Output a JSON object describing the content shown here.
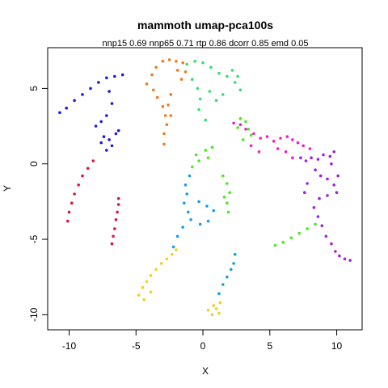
{
  "chart_data": {
    "type": "scatter",
    "title": "mammoth umap-pca100s",
    "subtitle": "nnp15 0.69 nnp65 0.71 rtp 0.86 dcorr 0.85 emd 0.05",
    "xlabel": "X",
    "ylabel": "Y",
    "xlim": [
      -11.6,
      11.9
    ],
    "ylim": [
      -11.0,
      7.7
    ],
    "xticks": [
      -10,
      -5,
      0,
      5,
      10
    ],
    "yticks": [
      -10,
      -5,
      0,
      5
    ],
    "grid": false,
    "legend": "none",
    "series": [
      {
        "color": "#1a1ae0",
        "points": [
          [
            -10.7,
            3.4
          ],
          [
            -10.2,
            3.7
          ],
          [
            -9.6,
            4.2
          ],
          [
            -9.0,
            4.6
          ],
          [
            -8.4,
            5.0
          ],
          [
            -7.8,
            5.4
          ],
          [
            -7.2,
            5.7
          ],
          [
            -6.6,
            5.8
          ],
          [
            -6.0,
            5.9
          ],
          [
            -7.0,
            4.8
          ],
          [
            -6.8,
            4.0
          ],
          [
            -7.2,
            3.2
          ],
          [
            -7.6,
            2.8
          ],
          [
            -8.0,
            2.5
          ],
          [
            -7.4,
            1.8
          ],
          [
            -7.0,
            1.6
          ],
          [
            -6.8,
            1.2
          ],
          [
            -7.2,
            0.9
          ],
          [
            -7.6,
            1.4
          ],
          [
            -6.5,
            2.0
          ],
          [
            -6.3,
            2.2
          ]
        ]
      },
      {
        "color": "#e0143c",
        "points": [
          [
            -10.1,
            -3.8
          ],
          [
            -10.0,
            -3.2
          ],
          [
            -9.8,
            -2.6
          ],
          [
            -9.6,
            -2.0
          ],
          [
            -9.3,
            -1.4
          ],
          [
            -9.0,
            -0.8
          ],
          [
            -8.6,
            -0.3
          ],
          [
            -8.2,
            0.2
          ],
          [
            -6.8,
            -5.3
          ],
          [
            -6.7,
            -4.8
          ],
          [
            -6.6,
            -4.3
          ],
          [
            -6.5,
            -3.7
          ],
          [
            -6.4,
            -3.2
          ],
          [
            -6.3,
            -2.7
          ],
          [
            -6.3,
            -2.3
          ]
        ]
      },
      {
        "color": "#f07a1e",
        "points": [
          [
            -4.2,
            5.3
          ],
          [
            -3.8,
            5.9
          ],
          [
            -3.5,
            6.4
          ],
          [
            -3.0,
            6.8
          ],
          [
            -2.5,
            6.9
          ],
          [
            -2.0,
            6.8
          ],
          [
            -1.5,
            6.7
          ],
          [
            -3.7,
            4.9
          ],
          [
            -3.4,
            4.4
          ],
          [
            -3.0,
            3.8
          ],
          [
            -2.8,
            3.2
          ],
          [
            -2.6,
            3.9
          ],
          [
            -2.4,
            4.6
          ],
          [
            -2.7,
            2.6
          ],
          [
            -2.9,
            2.0
          ],
          [
            -2.9,
            1.3
          ],
          [
            -2.4,
            3.2
          ],
          [
            -1.9,
            6.2
          ],
          [
            -1.6,
            5.6
          ],
          [
            -1.3,
            6.1
          ]
        ]
      },
      {
        "color": "#f0d21e",
        "points": [
          [
            -4.8,
            -8.7
          ],
          [
            -4.5,
            -8.2
          ],
          [
            -4.2,
            -7.8
          ],
          [
            -3.9,
            -7.4
          ],
          [
            -3.5,
            -7.0
          ],
          [
            -3.1,
            -6.6
          ],
          [
            -2.7,
            -6.3
          ],
          [
            -2.3,
            -6.0
          ],
          [
            -2.0,
            -5.7
          ],
          [
            -4.4,
            -9.0
          ],
          [
            -3.9,
            -8.5
          ],
          [
            0.4,
            -9.7
          ],
          [
            0.7,
            -10.0
          ],
          [
            1.0,
            -9.6
          ],
          [
            1.3,
            -9.2
          ],
          [
            0.8,
            -9.4
          ],
          [
            1.2,
            -9.9
          ]
        ]
      },
      {
        "color": "#33e06e",
        "points": [
          [
            -1.2,
            6.6
          ],
          [
            -0.6,
            6.8
          ],
          [
            0.0,
            6.7
          ],
          [
            0.6,
            6.4
          ],
          [
            1.2,
            6.0
          ],
          [
            1.8,
            5.8
          ],
          [
            2.4,
            5.4
          ],
          [
            2.8,
            4.9
          ],
          [
            -0.8,
            5.6
          ],
          [
            -0.4,
            5.0
          ],
          [
            -0.2,
            4.3
          ],
          [
            -0.3,
            3.6
          ],
          [
            0.2,
            2.9
          ],
          [
            0.5,
            4.8
          ],
          [
            1.0,
            4.2
          ],
          [
            1.5,
            4.6
          ],
          [
            2.2,
            6.2
          ],
          [
            2.6,
            5.8
          ]
        ]
      },
      {
        "color": "#4ee81e",
        "points": [
          [
            -0.5,
            0.6
          ],
          [
            -0.3,
            0.2
          ],
          [
            0.2,
            0.9
          ],
          [
            0.7,
            1.1
          ],
          [
            0.4,
            0.4
          ],
          [
            -0.8,
            -0.2
          ],
          [
            1.5,
            -0.8
          ],
          [
            1.8,
            -1.3
          ],
          [
            2.0,
            -1.9
          ],
          [
            1.8,
            -2.6
          ],
          [
            1.9,
            -3.2
          ],
          [
            1.6,
            -2.2
          ],
          [
            3.0,
            1.6
          ],
          [
            3.6,
            1.9
          ],
          [
            3.2,
            2.8
          ],
          [
            2.6,
            2.4
          ],
          [
            2.8,
            3.0
          ],
          [
            3.4,
            2.3
          ],
          [
            5.4,
            -5.4
          ],
          [
            6.0,
            -5.2
          ],
          [
            6.6,
            -4.9
          ],
          [
            7.2,
            -4.6
          ],
          [
            7.8,
            -4.3
          ],
          [
            8.4,
            -4.0
          ]
        ]
      },
      {
        "color": "#14a0e6",
        "points": [
          [
            -1.0,
            -0.8
          ],
          [
            -1.3,
            -1.4
          ],
          [
            -1.2,
            -2.0
          ],
          [
            -1.4,
            -2.6
          ],
          [
            -1.1,
            -3.2
          ],
          [
            -0.9,
            -3.7
          ],
          [
            -1.5,
            -4.2
          ],
          [
            -1.9,
            -4.8
          ],
          [
            -2.2,
            -5.5
          ],
          [
            -0.3,
            -2.5
          ],
          [
            0.3,
            -2.8
          ],
          [
            0.8,
            -3.1
          ],
          [
            0.4,
            -3.8
          ],
          [
            -0.2,
            -4.0
          ],
          [
            1.2,
            -8.6
          ],
          [
            1.5,
            -8.0
          ],
          [
            1.8,
            -7.5
          ],
          [
            2.1,
            -7.0
          ],
          [
            2.3,
            -6.6
          ],
          [
            2.4,
            -6.0
          ]
        ]
      },
      {
        "color": "#f01ec8",
        "points": [
          [
            2.3,
            2.7
          ],
          [
            2.8,
            2.6
          ],
          [
            3.2,
            2.3
          ],
          [
            3.8,
            2.0
          ],
          [
            4.3,
            1.7
          ],
          [
            4.8,
            1.8
          ],
          [
            5.3,
            1.5
          ],
          [
            5.8,
            1.7
          ],
          [
            6.3,
            1.8
          ],
          [
            6.7,
            1.6
          ],
          [
            7.1,
            1.4
          ],
          [
            7.5,
            1.2
          ],
          [
            8.0,
            1.0
          ],
          [
            5.6,
            1.0
          ],
          [
            6.2,
            0.8
          ],
          [
            6.7,
            0.4
          ],
          [
            3.6,
            1.2
          ],
          [
            4.2,
            0.8
          ]
        ]
      },
      {
        "color": "#a01ee6",
        "points": [
          [
            7.3,
            0.4
          ],
          [
            7.7,
            0.2
          ],
          [
            8.1,
            0.4
          ],
          [
            8.6,
            0.3
          ],
          [
            9.0,
            0.6
          ],
          [
            9.5,
            0.5
          ],
          [
            9.8,
            0.8
          ],
          [
            8.4,
            -0.4
          ],
          [
            8.8,
            -0.8
          ],
          [
            9.3,
            -1.0
          ],
          [
            9.8,
            -1.4
          ],
          [
            10.0,
            -1.9
          ],
          [
            9.3,
            -2.1
          ],
          [
            8.7,
            -2.3
          ],
          [
            8.3,
            -2.9
          ],
          [
            8.6,
            -3.5
          ],
          [
            8.9,
            -4.1
          ],
          [
            9.2,
            -4.8
          ],
          [
            9.6,
            -5.3
          ],
          [
            9.9,
            -5.8
          ],
          [
            10.2,
            -6.1
          ],
          [
            10.6,
            -6.3
          ],
          [
            11.0,
            -6.4
          ],
          [
            7.8,
            -1.3
          ],
          [
            7.6,
            -1.9
          ],
          [
            10.1,
            -0.8
          ],
          [
            9.6,
            0.0
          ]
        ]
      }
    ]
  }
}
